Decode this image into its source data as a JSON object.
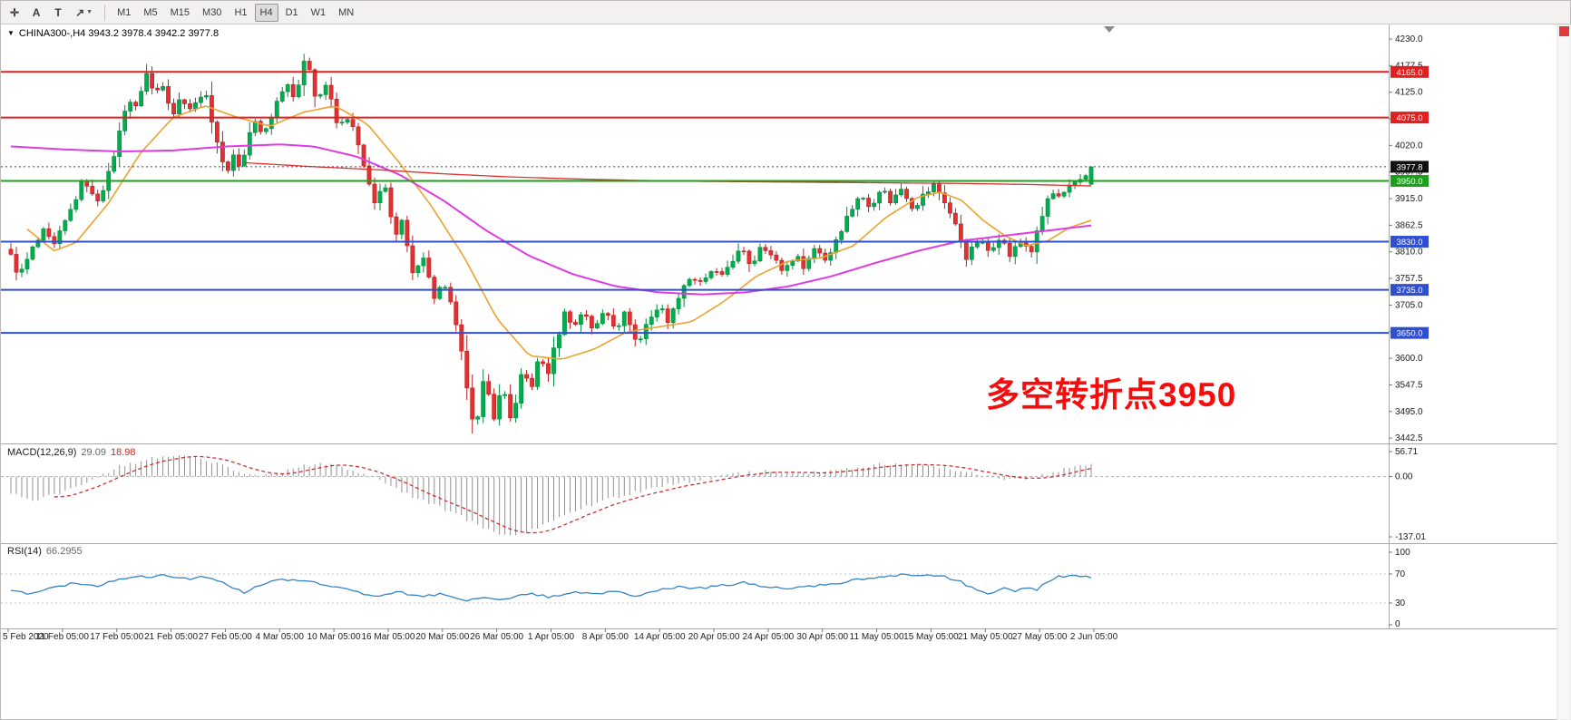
{
  "toolbar": {
    "tools": [
      {
        "id": "crosshair",
        "glyph": "✛"
      },
      {
        "id": "text",
        "glyph": "A"
      },
      {
        "id": "label",
        "glyph": "T"
      },
      {
        "id": "arrows",
        "glyph": "↗"
      }
    ],
    "timeframes": [
      "M1",
      "M5",
      "M15",
      "M30",
      "H1",
      "H4",
      "D1",
      "W1",
      "MN"
    ],
    "active_timeframe": "H4"
  },
  "chart": {
    "symbol_line": "CHINA300-,H4 3943.2 3978.4 3942.2 3977.8",
    "annotation": {
      "text": "多空转折点3950",
      "color": "#f50d0d"
    },
    "current_price": {
      "label": "3977.8",
      "value": 3977.8,
      "badge_color": "#111111"
    },
    "hlines": [
      {
        "label": "4165.0",
        "value": 4165.0,
        "color": "#e01f1f",
        "type": "resistance"
      },
      {
        "label": "4075.0",
        "value": 4075.0,
        "color": "#e01f1f",
        "type": "resistance"
      },
      {
        "label": "3950.0",
        "value": 3950.0,
        "color": "#19a119",
        "type": "pivot"
      },
      {
        "label": "3830.0",
        "value": 3830.0,
        "color": "#2f4fd0",
        "type": "support"
      },
      {
        "label": "3735.0",
        "value": 3735.0,
        "color": "#2f4fd0",
        "type": "support"
      },
      {
        "label": "3650.0",
        "value": 3650.0,
        "color": "#2f4fd0",
        "type": "support"
      }
    ],
    "price_axis": {
      "ticks": [
        4230.0,
        4177.5,
        4125.0,
        4072.5,
        4020.0,
        3967.5,
        3915.0,
        3862.5,
        3810.0,
        3757.5,
        3705.0,
        3652.5,
        3600.0,
        3547.5,
        3495.0,
        3442.5
      ]
    },
    "time_axis": [
      "5 Feb 2020",
      "11 Feb 05:00",
      "17 Feb 05:00",
      "21 Feb 05:00",
      "27 Feb 05:00",
      "4 Mar 05:00",
      "10 Mar 05:00",
      "16 Mar 05:00",
      "20 Mar 05:00",
      "26 Mar 05:00",
      "1 Apr 05:00",
      "8 Apr 05:00",
      "14 Apr 05:00",
      "20 Apr 05:00",
      "24 Apr 05:00",
      "30 Apr 05:00",
      "11 May 05:00",
      "15 May 05:00",
      "21 May 05:00",
      "27 May 05:00",
      "2 Jun 05:00"
    ]
  },
  "chart_data": {
    "type": "candlestick",
    "symbol": "CHINA300-",
    "timeframe": "H4",
    "title": "CHINA300-,H4",
    "last_ohlc": {
      "open": 3943.2,
      "high": 3978.4,
      "low": 3942.2,
      "close": 3977.8
    },
    "x_range": [
      "5 Feb 2020",
      "2 Jun 2020"
    ],
    "y_range": [
      3432,
      4255
    ],
    "num_candles": 200,
    "candle_colors": {
      "up_fill": "#00ae4e",
      "up_stroke": "#038a3e",
      "down_fill": "#e23131",
      "down_stroke": "#bb1f1f"
    },
    "support_resistance_levels": [
      4165,
      4075,
      3950,
      3830,
      3735,
      3650
    ],
    "price_waypoints": [
      [
        0.0,
        3800
      ],
      [
        0.008,
        3762
      ],
      [
        0.02,
        3815
      ],
      [
        0.03,
        3848
      ],
      [
        0.04,
        3820
      ],
      [
        0.055,
        3890
      ],
      [
        0.068,
        3958
      ],
      [
        0.078,
        3905
      ],
      [
        0.09,
        3958
      ],
      [
        0.1,
        4040
      ],
      [
        0.108,
        4118
      ],
      [
        0.115,
        4088
      ],
      [
        0.125,
        4165
      ],
      [
        0.133,
        4118
      ],
      [
        0.14,
        4148
      ],
      [
        0.15,
        4082
      ],
      [
        0.158,
        4118
      ],
      [
        0.168,
        4088
      ],
      [
        0.178,
        4132
      ],
      [
        0.188,
        4058
      ],
      [
        0.198,
        3962
      ],
      [
        0.207,
        4005
      ],
      [
        0.213,
        3972
      ],
      [
        0.224,
        4072
      ],
      [
        0.233,
        4038
      ],
      [
        0.243,
        4088
      ],
      [
        0.254,
        4148
      ],
      [
        0.263,
        4118
      ],
      [
        0.274,
        4198
      ],
      [
        0.283,
        4108
      ],
      [
        0.292,
        4142
      ],
      [
        0.303,
        4052
      ],
      [
        0.312,
        4078
      ],
      [
        0.32,
        4032
      ],
      [
        0.33,
        3948
      ],
      [
        0.337,
        3902
      ],
      [
        0.345,
        3958
      ],
      [
        0.355,
        3832
      ],
      [
        0.363,
        3872
      ],
      [
        0.373,
        3762
      ],
      [
        0.382,
        3802
      ],
      [
        0.393,
        3702
      ],
      [
        0.4,
        3758
      ],
      [
        0.41,
        3682
      ],
      [
        0.42,
        3575
      ],
      [
        0.43,
        3452
      ],
      [
        0.438,
        3558
      ],
      [
        0.448,
        3482
      ],
      [
        0.455,
        3548
      ],
      [
        0.464,
        3472
      ],
      [
        0.474,
        3578
      ],
      [
        0.481,
        3538
      ],
      [
        0.49,
        3608
      ],
      [
        0.496,
        3562
      ],
      [
        0.506,
        3642
      ],
      [
        0.514,
        3698
      ],
      [
        0.521,
        3658
      ],
      [
        0.53,
        3698
      ],
      [
        0.54,
        3652
      ],
      [
        0.55,
        3698
      ],
      [
        0.56,
        3662
      ],
      [
        0.57,
        3692
      ],
      [
        0.58,
        3622
      ],
      [
        0.59,
        3678
      ],
      [
        0.6,
        3702
      ],
      [
        0.61,
        3672
      ],
      [
        0.62,
        3738
      ],
      [
        0.63,
        3762
      ],
      [
        0.64,
        3742
      ],
      [
        0.65,
        3778
      ],
      [
        0.657,
        3752
      ],
      [
        0.666,
        3792
      ],
      [
        0.676,
        3812
      ],
      [
        0.686,
        3782
      ],
      [
        0.695,
        3832
      ],
      [
        0.705,
        3798
      ],
      [
        0.715,
        3772
      ],
      [
        0.725,
        3802
      ],
      [
        0.735,
        3782
      ],
      [
        0.745,
        3822
      ],
      [
        0.755,
        3792
      ],
      [
        0.765,
        3842
      ],
      [
        0.775,
        3882
      ],
      [
        0.785,
        3922
      ],
      [
        0.795,
        3898
      ],
      [
        0.805,
        3938
      ],
      [
        0.815,
        3908
      ],
      [
        0.825,
        3938
      ],
      [
        0.835,
        3898
      ],
      [
        0.845,
        3922
      ],
      [
        0.855,
        3942
      ],
      [
        0.865,
        3908
      ],
      [
        0.875,
        3858
      ],
      [
        0.885,
        3798
      ],
      [
        0.895,
        3832
      ],
      [
        0.905,
        3812
      ],
      [
        0.915,
        3842
      ],
      [
        0.925,
        3802
      ],
      [
        0.935,
        3832
      ],
      [
        0.945,
        3812
      ],
      [
        0.953,
        3868
      ],
      [
        0.962,
        3928
      ],
      [
        0.972,
        3912
      ],
      [
        0.982,
        3942
      ],
      [
        0.992,
        3958
      ],
      [
        1.0,
        3977.8
      ]
    ],
    "moving_averages": [
      {
        "name": "ma-fast",
        "color": "#eda22f",
        "points": [
          [
            0.015,
            3855
          ],
          [
            0.04,
            3812
          ],
          [
            0.06,
            3828
          ],
          [
            0.09,
            3905
          ],
          [
            0.12,
            4005
          ],
          [
            0.15,
            4075
          ],
          [
            0.18,
            4098
          ],
          [
            0.21,
            4075
          ],
          [
            0.24,
            4058
          ],
          [
            0.27,
            4085
          ],
          [
            0.3,
            4098
          ],
          [
            0.33,
            4062
          ],
          [
            0.36,
            3985
          ],
          [
            0.39,
            3898
          ],
          [
            0.42,
            3798
          ],
          [
            0.45,
            3678
          ],
          [
            0.48,
            3605
          ],
          [
            0.51,
            3598
          ],
          [
            0.54,
            3618
          ],
          [
            0.57,
            3652
          ],
          [
            0.6,
            3662
          ],
          [
            0.63,
            3672
          ],
          [
            0.66,
            3712
          ],
          [
            0.69,
            3762
          ],
          [
            0.72,
            3792
          ],
          [
            0.75,
            3798
          ],
          [
            0.78,
            3822
          ],
          [
            0.81,
            3878
          ],
          [
            0.84,
            3918
          ],
          [
            0.86,
            3928
          ],
          [
            0.88,
            3912
          ],
          [
            0.9,
            3872
          ],
          [
            0.92,
            3842
          ],
          [
            0.94,
            3822
          ],
          [
            0.96,
            3832
          ],
          [
            0.98,
            3858
          ],
          [
            1.0,
            3872
          ]
        ]
      },
      {
        "name": "ma-mid",
        "color": "#de3cde",
        "points": [
          [
            0.0,
            4018
          ],
          [
            0.05,
            4012
          ],
          [
            0.1,
            4008
          ],
          [
            0.15,
            4010
          ],
          [
            0.2,
            4018
          ],
          [
            0.25,
            4022
          ],
          [
            0.28,
            4018
          ],
          [
            0.32,
            3998
          ],
          [
            0.36,
            3962
          ],
          [
            0.4,
            3912
          ],
          [
            0.44,
            3852
          ],
          [
            0.48,
            3802
          ],
          [
            0.52,
            3766
          ],
          [
            0.56,
            3742
          ],
          [
            0.6,
            3730
          ],
          [
            0.64,
            3726
          ],
          [
            0.68,
            3730
          ],
          [
            0.72,
            3742
          ],
          [
            0.76,
            3762
          ],
          [
            0.8,
            3788
          ],
          [
            0.84,
            3812
          ],
          [
            0.88,
            3832
          ],
          [
            0.92,
            3842
          ],
          [
            0.96,
            3852
          ],
          [
            1.0,
            3862
          ]
        ]
      },
      {
        "name": "ma-slow",
        "color": "#e03030",
        "points": [
          [
            0.215,
            3986
          ],
          [
            0.28,
            3978
          ],
          [
            0.34,
            3972
          ],
          [
            0.4,
            3964
          ],
          [
            0.46,
            3958
          ],
          [
            0.52,
            3954
          ],
          [
            0.58,
            3951
          ],
          [
            0.64,
            3949
          ],
          [
            0.7,
            3948
          ],
          [
            0.76,
            3947
          ],
          [
            0.82,
            3946
          ],
          [
            0.88,
            3945
          ],
          [
            0.94,
            3943
          ],
          [
            1.0,
            3940
          ]
        ]
      }
    ],
    "indicators": {
      "macd": {
        "name": "MACD(12,26,9)",
        "value_main": "29.09",
        "value_signal": "18.98",
        "histogram_color": "#909090",
        "signal_color": "#d02020",
        "scale": [
          {
            "label": "56.71",
            "value": 56.71
          },
          {
            "label": "0.00",
            "value": 0
          },
          {
            "label": "-137.01",
            "value": -137.01
          }
        ],
        "waypoints": [
          [
            0.0,
            -40
          ],
          [
            0.02,
            -55
          ],
          [
            0.05,
            -35
          ],
          [
            0.08,
            0
          ],
          [
            0.1,
            22
          ],
          [
            0.13,
            42
          ],
          [
            0.15,
            50
          ],
          [
            0.17,
            45
          ],
          [
            0.19,
            30
          ],
          [
            0.21,
            10
          ],
          [
            0.23,
            2
          ],
          [
            0.25,
            10
          ],
          [
            0.27,
            24
          ],
          [
            0.29,
            30
          ],
          [
            0.31,
            20
          ],
          [
            0.33,
            2
          ],
          [
            0.35,
            -18
          ],
          [
            0.37,
            -45
          ],
          [
            0.4,
            -72
          ],
          [
            0.42,
            -95
          ],
          [
            0.44,
            -120
          ],
          [
            0.46,
            -137
          ],
          [
            0.48,
            -124
          ],
          [
            0.5,
            -100
          ],
          [
            0.52,
            -80
          ],
          [
            0.54,
            -62
          ],
          [
            0.56,
            -46
          ],
          [
            0.58,
            -34
          ],
          [
            0.6,
            -24
          ],
          [
            0.62,
            -14
          ],
          [
            0.64,
            -6
          ],
          [
            0.66,
            2
          ],
          [
            0.68,
            8
          ],
          [
            0.7,
            12
          ],
          [
            0.72,
            10
          ],
          [
            0.74,
            8
          ],
          [
            0.76,
            13
          ],
          [
            0.78,
            20
          ],
          [
            0.8,
            27
          ],
          [
            0.82,
            30
          ],
          [
            0.84,
            26
          ],
          [
            0.86,
            22
          ],
          [
            0.88,
            14
          ],
          [
            0.9,
            2
          ],
          [
            0.92,
            -10
          ],
          [
            0.94,
            -4
          ],
          [
            0.96,
            6
          ],
          [
            0.98,
            20
          ],
          [
            1.0,
            29.09
          ]
        ]
      },
      "rsi": {
        "name": "RSI(14)",
        "value": "66.2955",
        "line_color": "#3583c8",
        "levels": [
          {
            "label": "100",
            "value": 100
          },
          {
            "label": "70",
            "value": 70
          },
          {
            "label": "30",
            "value": 30
          },
          {
            "label": "0",
            "value": 0
          }
        ],
        "waypoints": [
          [
            0.0,
            48
          ],
          [
            0.02,
            42
          ],
          [
            0.04,
            52
          ],
          [
            0.06,
            58
          ],
          [
            0.08,
            54
          ],
          [
            0.1,
            62
          ],
          [
            0.12,
            66
          ],
          [
            0.14,
            68
          ],
          [
            0.16,
            63
          ],
          [
            0.18,
            66
          ],
          [
            0.2,
            56
          ],
          [
            0.215,
            44
          ],
          [
            0.23,
            55
          ],
          [
            0.25,
            61
          ],
          [
            0.27,
            63
          ],
          [
            0.285,
            58
          ],
          [
            0.3,
            52
          ],
          [
            0.32,
            45
          ],
          [
            0.34,
            40
          ],
          [
            0.36,
            45
          ],
          [
            0.38,
            38
          ],
          [
            0.4,
            43
          ],
          [
            0.42,
            33
          ],
          [
            0.44,
            39
          ],
          [
            0.46,
            35
          ],
          [
            0.48,
            43
          ],
          [
            0.5,
            38
          ],
          [
            0.52,
            46
          ],
          [
            0.54,
            42
          ],
          [
            0.56,
            47
          ],
          [
            0.58,
            40
          ],
          [
            0.6,
            49
          ],
          [
            0.62,
            53
          ],
          [
            0.64,
            50
          ],
          [
            0.66,
            55
          ],
          [
            0.68,
            58
          ],
          [
            0.7,
            52
          ],
          [
            0.72,
            49
          ],
          [
            0.74,
            53
          ],
          [
            0.76,
            56
          ],
          [
            0.78,
            61
          ],
          [
            0.8,
            66
          ],
          [
            0.82,
            69
          ],
          [
            0.84,
            66
          ],
          [
            0.86,
            68
          ],
          [
            0.875,
            62
          ],
          [
            0.89,
            50
          ],
          [
            0.905,
            42
          ],
          [
            0.92,
            52
          ],
          [
            0.93,
            47
          ],
          [
            0.94,
            52
          ],
          [
            0.95,
            49
          ],
          [
            0.96,
            61
          ],
          [
            0.97,
            66
          ],
          [
            0.98,
            69
          ],
          [
            0.99,
            66
          ],
          [
            1.0,
            66.3
          ]
        ]
      }
    }
  }
}
